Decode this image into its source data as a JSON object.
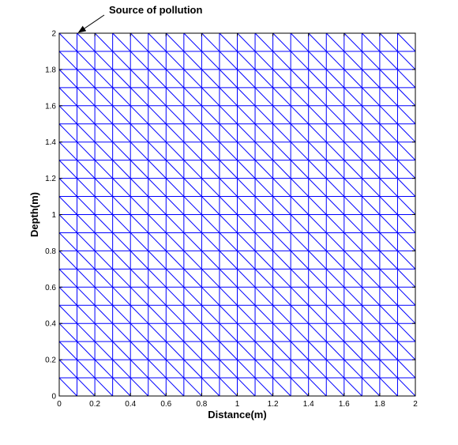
{
  "chart_data": {
    "type": "mesh",
    "title": "",
    "xlabel": "Distance(m)",
    "ylabel": "Depth(m)",
    "xlim": [
      0,
      2
    ],
    "ylim": [
      0,
      2
    ],
    "xticks": [
      "0",
      "0.2",
      "0.4",
      "0.6",
      "0.8",
      "1",
      "1.2",
      "1.4",
      "1.6",
      "1.8",
      "2"
    ],
    "yticks": [
      "0",
      "0.2",
      "0.4",
      "0.6",
      "0.8",
      "1",
      "1.2",
      "1.4",
      "1.6",
      "1.8",
      "2"
    ],
    "mesh": {
      "element": "triangle",
      "divisions_x": 20,
      "divisions_y": 20,
      "spacing": 0.1,
      "diagonal": "top-left to bottom-right",
      "color": "#0000ff"
    },
    "grid": false,
    "annotation": {
      "text": "Source of pollution",
      "point": [
        0.1,
        2
      ]
    }
  }
}
